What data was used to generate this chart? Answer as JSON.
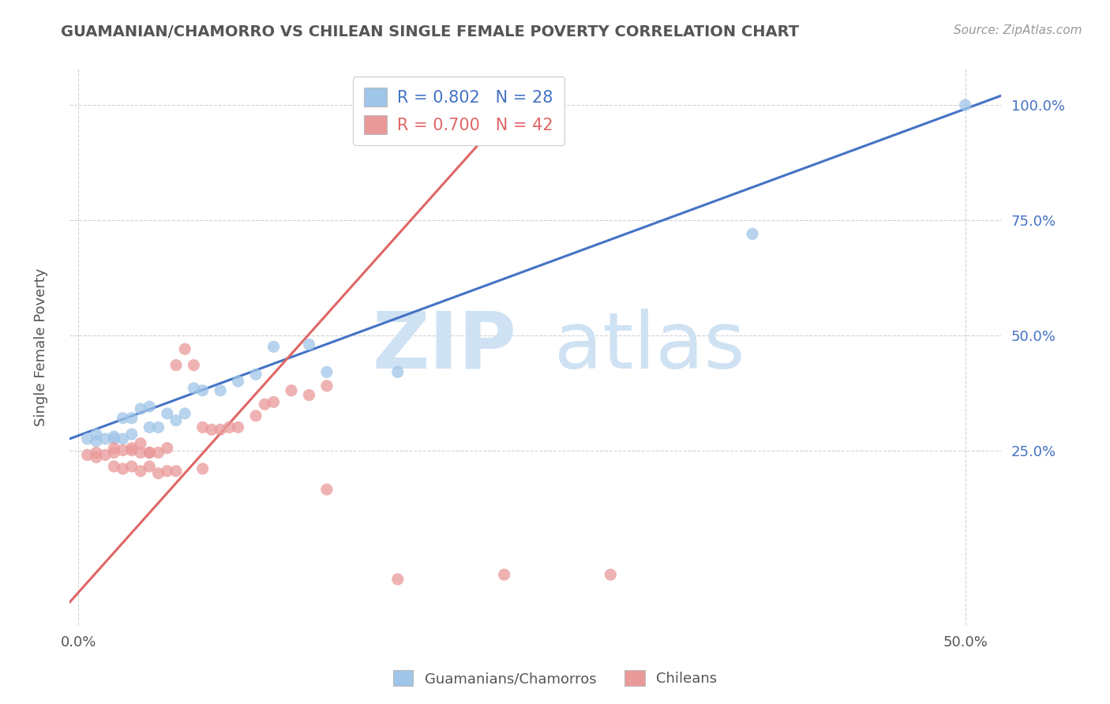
{
  "title": "GUAMANIAN/CHAMORRO VS CHILEAN SINGLE FEMALE POVERTY CORRELATION CHART",
  "source": "Source: ZipAtlas.com",
  "xlim": [
    -0.005,
    0.52
  ],
  "ylim": [
    -0.13,
    1.08
  ],
  "blue_color": "#9fc5e8",
  "pink_color": "#ea9999",
  "blue_line_color": "#4472c4",
  "pink_line_color": "#e06666",
  "blue_r": 0.802,
  "blue_n": 28,
  "pink_r": 0.7,
  "pink_n": 42,
  "legend_label_blue": "Guamanians/Chamorros",
  "legend_label_pink": "Chileans",
  "ylabel": "Single Female Poverty",
  "watermark_zip": "ZIP",
  "watermark_atlas": "atlas",
  "blue_line": {
    "x0": -0.005,
    "y0": 0.275,
    "x1": 0.52,
    "y1": 1.02
  },
  "pink_line": {
    "x0": -0.005,
    "y0": -0.08,
    "x1": 0.25,
    "y1": 1.02
  },
  "blue_scatter_x": [
    0.005,
    0.01,
    0.01,
    0.015,
    0.02,
    0.02,
    0.025,
    0.025,
    0.03,
    0.03,
    0.035,
    0.04,
    0.04,
    0.045,
    0.05,
    0.055,
    0.06,
    0.065,
    0.07,
    0.08,
    0.09,
    0.1,
    0.11,
    0.13,
    0.14,
    0.18,
    0.5,
    0.38
  ],
  "blue_scatter_y": [
    0.275,
    0.27,
    0.285,
    0.275,
    0.275,
    0.28,
    0.275,
    0.32,
    0.285,
    0.32,
    0.34,
    0.3,
    0.345,
    0.3,
    0.33,
    0.315,
    0.33,
    0.385,
    0.38,
    0.38,
    0.4,
    0.415,
    0.475,
    0.48,
    0.42,
    0.42,
    1.0,
    0.72
  ],
  "pink_scatter_x": [
    0.005,
    0.01,
    0.01,
    0.015,
    0.02,
    0.02,
    0.025,
    0.03,
    0.03,
    0.035,
    0.035,
    0.04,
    0.04,
    0.045,
    0.05,
    0.055,
    0.06,
    0.065,
    0.07,
    0.075,
    0.08,
    0.085,
    0.09,
    0.1,
    0.105,
    0.11,
    0.12,
    0.13,
    0.14,
    0.02,
    0.025,
    0.03,
    0.035,
    0.04,
    0.045,
    0.05,
    0.055,
    0.07,
    0.14,
    0.18,
    0.24,
    0.3
  ],
  "pink_scatter_y": [
    0.24,
    0.235,
    0.245,
    0.24,
    0.245,
    0.255,
    0.25,
    0.255,
    0.25,
    0.245,
    0.265,
    0.245,
    0.245,
    0.245,
    0.255,
    0.435,
    0.47,
    0.435,
    0.3,
    0.295,
    0.295,
    0.3,
    0.3,
    0.325,
    0.35,
    0.355,
    0.38,
    0.37,
    0.39,
    0.215,
    0.21,
    0.215,
    0.205,
    0.215,
    0.2,
    0.205,
    0.205,
    0.21,
    0.165,
    -0.03,
    -0.02,
    -0.02
  ],
  "background_color": "#ffffff",
  "grid_color": "#cccccc"
}
